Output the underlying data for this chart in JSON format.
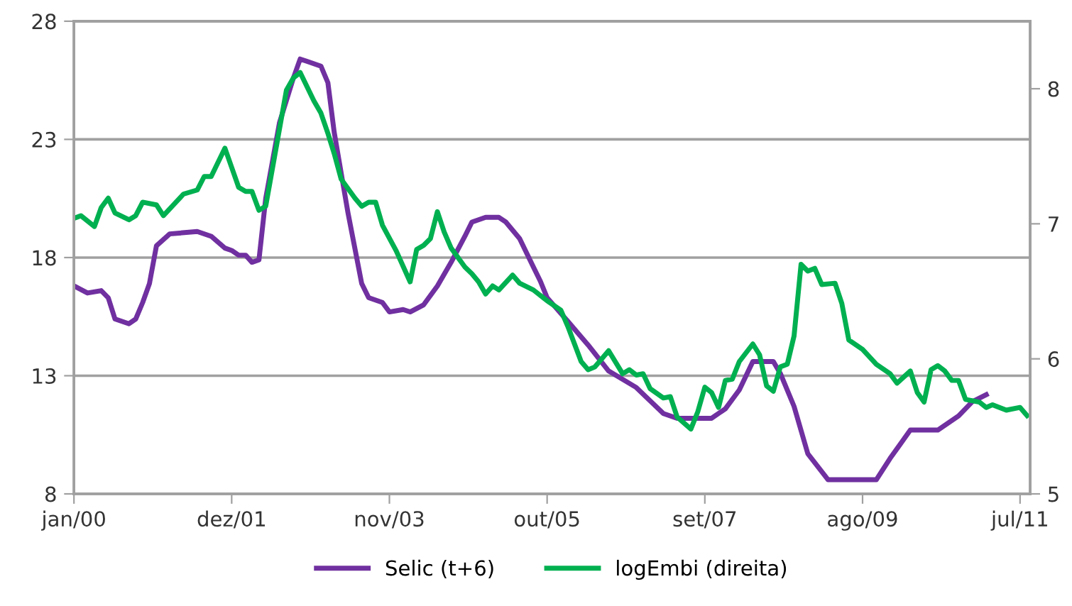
{
  "chart_data": {
    "type": "line",
    "legend": "bottom",
    "grid": "y",
    "line_style": "solid",
    "marker": "none",
    "xlim": [
      "2000-01",
      "2011-08-15"
    ],
    "xticks": [
      {
        "value": "2000-01",
        "label": "jan/00"
      },
      {
        "value": "2001-12",
        "label": "dez/01"
      },
      {
        "value": "2003-11",
        "label": "nov/03"
      },
      {
        "value": "2005-10",
        "label": "out/05"
      },
      {
        "value": "2007-09",
        "label": "set/07"
      },
      {
        "value": "2009-08",
        "label": "ago/09"
      },
      {
        "value": "2011-07",
        "label": "jul/11"
      }
    ],
    "ylim": [
      8,
      28
    ],
    "yticks": [
      8,
      13,
      18,
      23,
      28
    ],
    "y2lim": [
      5,
      8.5
    ],
    "y2ticks": [
      5,
      6,
      7,
      8
    ],
    "series": [
      {
        "name": "Selic (t+6)",
        "color": "#7030a0",
        "x": [
          "2000-01",
          "2000-03",
          "2000-05",
          "2000-06",
          "2000-07",
          "2000-09",
          "2000-10",
          "2000-11",
          "2000-12",
          "2001-01",
          "2001-03",
          "2001-07",
          "2001-09",
          "2001-11",
          "2001-12",
          "2002-01",
          "2002-02",
          "2002-03",
          "2002-04",
          "2002-05",
          "2002-07",
          "2002-09",
          "2002-10",
          "2002-11",
          "2003-01",
          "2003-02",
          "2003-03",
          "2003-05",
          "2003-07",
          "2003-08",
          "2003-10",
          "2003-11",
          "2004-01",
          "2004-02",
          "2004-04",
          "2004-06",
          "2004-08",
          "2004-10",
          "2004-11",
          "2005-01",
          "2005-03",
          "2005-04",
          "2005-06",
          "2005-08",
          "2005-09",
          "2005-10",
          "2006-01",
          "2006-04",
          "2006-07",
          "2006-11",
          "2007-03",
          "2007-05",
          "2007-10",
          "2007-12",
          "2008-02",
          "2008-04",
          "2008-07",
          "2008-08",
          "2008-10",
          "2008-12",
          "2009-03",
          "2009-10",
          "2009-12",
          "2010-03",
          "2010-07",
          "2010-10",
          "2010-12",
          "2011-02"
        ],
        "values": [
          16.8,
          16.5,
          16.6,
          16.3,
          15.4,
          15.2,
          15.4,
          16.1,
          16.9,
          18.5,
          19.0,
          19.1,
          18.9,
          18.4,
          18.3,
          18.1,
          18.1,
          17.8,
          17.9,
          20.5,
          23.7,
          25.6,
          26.4,
          26.3,
          26.1,
          25.4,
          23.3,
          19.9,
          16.9,
          16.3,
          16.1,
          15.7,
          15.8,
          15.7,
          16.0,
          16.8,
          17.8,
          18.9,
          19.5,
          19.7,
          19.7,
          19.5,
          18.8,
          17.6,
          17.0,
          16.3,
          15.3,
          14.3,
          13.2,
          12.5,
          11.4,
          11.2,
          11.2,
          11.6,
          12.4,
          13.6,
          13.6,
          13.1,
          11.7,
          9.7,
          8.6,
          8.6,
          9.5,
          10.7,
          10.7,
          11.3,
          11.9,
          12.2
        ]
      },
      {
        "name": "logEmbi (direita)",
        "color": "#00b050",
        "axis": "y2",
        "x": [
          "2000-01",
          "2000-02",
          "2000-04",
          "2000-05",
          "2000-06",
          "2000-07",
          "2000-09",
          "2000-10",
          "2000-11",
          "2001-01",
          "2001-02",
          "2001-05",
          "2001-07",
          "2001-08",
          "2001-09",
          "2001-11",
          "2002-01",
          "2002-02",
          "2002-03",
          "2002-04",
          "2002-05",
          "2002-08",
          "2002-09",
          "2002-10",
          "2002-12",
          "2003-01",
          "2003-02",
          "2003-03",
          "2003-04",
          "2003-06",
          "2003-07",
          "2003-08",
          "2003-09",
          "2003-10",
          "2003-12",
          "2004-02",
          "2004-03",
          "2004-04",
          "2004-05",
          "2004-06",
          "2004-07",
          "2004-08",
          "2004-10",
          "2004-11",
          "2004-12",
          "2005-01",
          "2005-02",
          "2005-03",
          "2005-05",
          "2005-06",
          "2005-08",
          "2005-10",
          "2005-12",
          "2006-01",
          "2006-03",
          "2006-04",
          "2006-05",
          "2006-07",
          "2006-09",
          "2006-10",
          "2006-11",
          "2006-12",
          "2007-01",
          "2007-03",
          "2007-04",
          "2007-05",
          "2007-07",
          "2007-08",
          "2007-09",
          "2007-10",
          "2007-11",
          "2007-12",
          "2008-01",
          "2008-02",
          "2008-04",
          "2008-05",
          "2008-06",
          "2008-07",
          "2008-08",
          "2008-09",
          "2008-10",
          "2008-11",
          "2008-12",
          "2009-01",
          "2009-02",
          "2009-04",
          "2009-05",
          "2009-06",
          "2009-08",
          "2009-10",
          "2009-12",
          "2010-01",
          "2010-03",
          "2010-04",
          "2010-05",
          "2010-06",
          "2010-07",
          "2010-08",
          "2010-09",
          "2010-10",
          "2010-11",
          "2011-01",
          "2011-02",
          "2011-03",
          "2011-05",
          "2011-07",
          "2011-08"
        ],
        "values": [
          7.04,
          7.06,
          6.98,
          7.12,
          7.19,
          7.08,
          7.03,
          7.06,
          7.16,
          7.14,
          7.06,
          7.22,
          7.25,
          7.35,
          7.35,
          7.56,
          7.27,
          7.24,
          7.24,
          7.1,
          7.13,
          7.99,
          8.08,
          8.12,
          7.91,
          7.82,
          7.67,
          7.52,
          7.33,
          7.19,
          7.13,
          7.16,
          7.16,
          6.99,
          6.8,
          6.57,
          6.81,
          6.84,
          6.89,
          7.09,
          6.94,
          6.82,
          6.68,
          6.63,
          6.57,
          6.48,
          6.54,
          6.51,
          6.62,
          6.56,
          6.51,
          6.43,
          6.36,
          6.24,
          5.98,
          5.92,
          5.94,
          6.06,
          5.89,
          5.92,
          5.88,
          5.89,
          5.78,
          5.71,
          5.72,
          5.57,
          5.48,
          5.61,
          5.79,
          5.75,
          5.64,
          5.84,
          5.85,
          5.98,
          6.11,
          6.03,
          5.8,
          5.76,
          5.94,
          5.96,
          6.17,
          6.7,
          6.65,
          6.67,
          6.55,
          6.56,
          6.41,
          6.14,
          6.07,
          5.96,
          5.89,
          5.82,
          5.91,
          5.75,
          5.68,
          5.92,
          5.95,
          5.91,
          5.84,
          5.84,
          5.7,
          5.68,
          5.64,
          5.66,
          5.62,
          5.64,
          5.58
        ]
      }
    ]
  }
}
